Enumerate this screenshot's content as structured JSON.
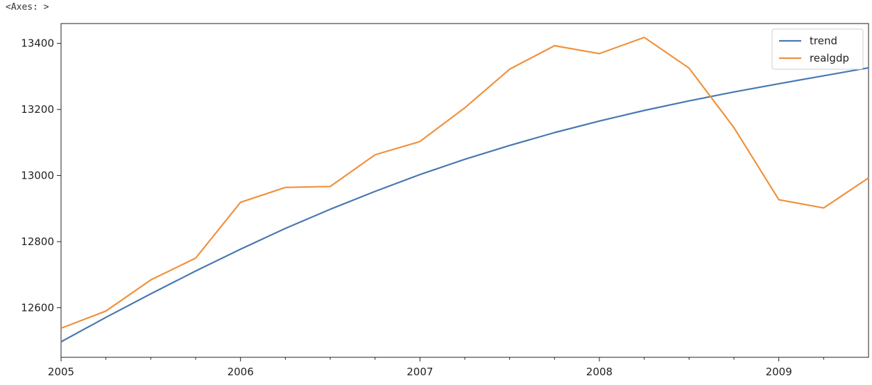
{
  "output_label": "<Axes: >",
  "chart_data": {
    "type": "line",
    "legend_position": "top-right",
    "grid": false,
    "xlim": [
      2005.0,
      2009.5
    ],
    "ylim": [
      12450,
      13460
    ],
    "x_ticks": [
      2005,
      2006,
      2007,
      2008,
      2009
    ],
    "x_tick_labels": [
      "2005",
      "2006",
      "2007",
      "2008",
      "2009"
    ],
    "x_minor_ticks": [
      2005.25,
      2005.5,
      2005.75,
      2006.25,
      2006.5,
      2006.75,
      2007.25,
      2007.5,
      2007.75,
      2008.25,
      2008.5,
      2008.75,
      2009.25
    ],
    "y_ticks": [
      12600,
      12800,
      13000,
      13200,
      13400
    ],
    "y_tick_labels": [
      "12600",
      "12800",
      "13000",
      "13200",
      "13400"
    ],
    "x": [
      2005.0,
      2005.25,
      2005.5,
      2005.75,
      2006.0,
      2006.25,
      2006.5,
      2006.75,
      2007.0,
      2007.25,
      2007.5,
      2007.75,
      2008.0,
      2008.25,
      2008.5,
      2008.75,
      2009.0,
      2009.25,
      2009.5
    ],
    "series": [
      {
        "name": "trend",
        "color": "#4878b0",
        "values": [
          12497,
          12571,
          12642,
          12711,
          12777,
          12840,
          12898,
          12952,
          13003,
          13049,
          13091,
          13130,
          13165,
          13197,
          13226,
          13253,
          13278,
          13302,
          13326
        ]
      },
      {
        "name": "realgdp",
        "color": "#f0913c",
        "values": [
          12538,
          12590,
          12684,
          12750,
          12919,
          12964,
          12967,
          13063,
          13103,
          13205,
          13322,
          13393,
          13369,
          13418,
          13325,
          13145,
          12927,
          12902,
          12993
        ]
      }
    ]
  }
}
